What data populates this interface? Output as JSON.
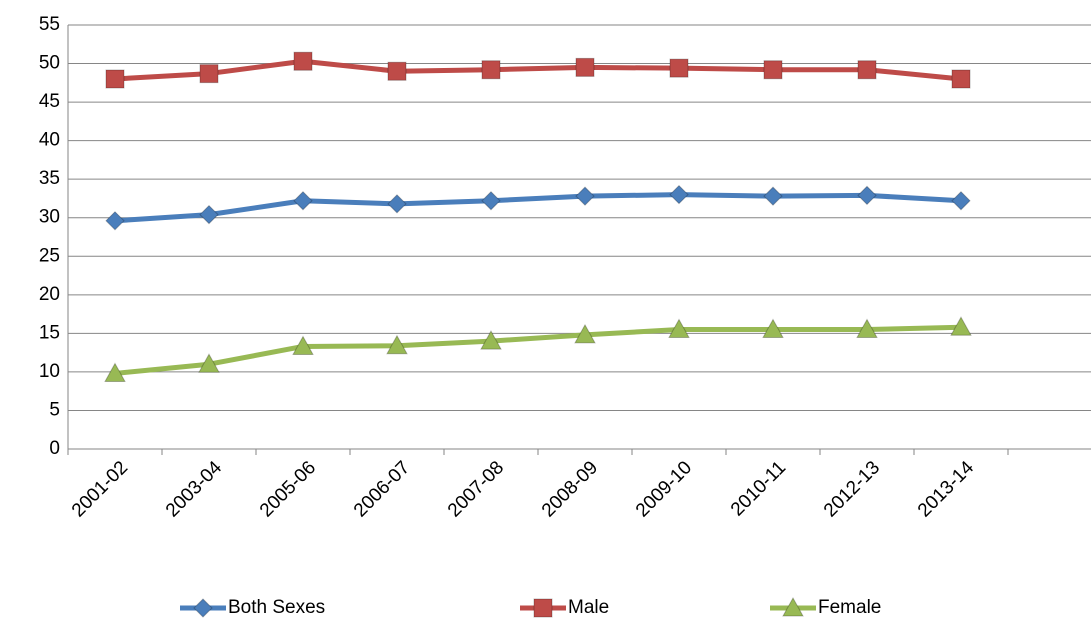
{
  "chart_data": {
    "type": "line",
    "categories": [
      "2001-02",
      "2003-04",
      "2005-06",
      "2006-07",
      "2007-08",
      "2008-09",
      "2009-10",
      "2010-11",
      "2012-13",
      "2013-14",
      null
    ],
    "series": [
      {
        "name": "Both Sexes",
        "color": "#4a7ebb",
        "marker": "diamond",
        "values": [
          29.6,
          30.4,
          32.2,
          31.8,
          32.2,
          32.8,
          33.0,
          32.8,
          32.9,
          32.2,
          null
        ]
      },
      {
        "name": "Male",
        "color": "#be4b48",
        "marker": "square",
        "values": [
          48.0,
          48.7,
          50.3,
          49.0,
          49.2,
          49.5,
          49.4,
          49.2,
          49.2,
          48.0,
          null
        ]
      },
      {
        "name": "Female",
        "color": "#98b954",
        "marker": "triangle",
        "values": [
          9.8,
          11.0,
          13.3,
          13.4,
          14.0,
          14.8,
          15.5,
          15.5,
          15.5,
          15.8,
          null
        ]
      }
    ],
    "ylim": [
      0,
      55
    ],
    "yticks": [
      0,
      5,
      10,
      15,
      20,
      25,
      30,
      35,
      40,
      45,
      50,
      55
    ],
    "grid": true,
    "legend": "bottom"
  }
}
